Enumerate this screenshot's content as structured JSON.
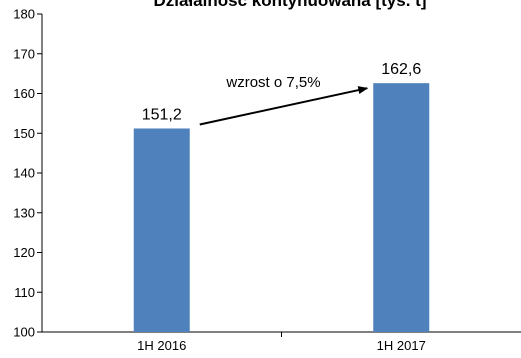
{
  "chart_data": {
    "type": "bar",
    "title": "Działalność kontynuowana [tys. t]",
    "categories": [
      "1H 2016",
      "1H 2017"
    ],
    "values": [
      151.2,
      162.6
    ],
    "value_labels": [
      "151,2",
      "162,6"
    ],
    "xlabel": "",
    "ylabel": "",
    "ylim": [
      100,
      180
    ],
    "yticks": [
      100,
      110,
      120,
      130,
      140,
      150,
      160,
      170,
      180
    ],
    "grid": false,
    "legend": "none",
    "bar_color": "#4f81bd",
    "annotation": {
      "text": "wzrost o 7,5%",
      "from_category": "1H 2016",
      "to_category": "1H 2017"
    }
  }
}
